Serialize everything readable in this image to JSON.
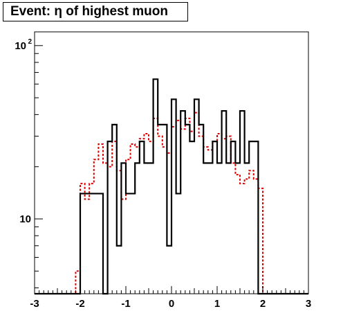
{
  "chart_data": {
    "type": "histogram",
    "title": "Event: η of highest muon",
    "xlabel": "",
    "ylabel": "",
    "xlim": [
      -3,
      3
    ],
    "ylim": [
      3.7,
      120
    ],
    "yscale": "log",
    "bin_width": 0.1,
    "x_ticks": [
      {
        "value": -3,
        "label": "-3"
      },
      {
        "value": -2,
        "label": "-2"
      },
      {
        "value": -1,
        "label": "-1"
      },
      {
        "value": 0,
        "label": "0"
      },
      {
        "value": 1,
        "label": "1"
      },
      {
        "value": 2,
        "label": "2"
      },
      {
        "value": 3,
        "label": "3"
      }
    ],
    "y_ticks": [
      {
        "value": 10,
        "label": "10"
      },
      {
        "value": 100,
        "label": "10",
        "exponent": "2"
      }
    ],
    "series": [
      {
        "style": "solid",
        "color": "#000000",
        "bins": [
          [
            -3.0,
            -2.0,
            0
          ],
          [
            -2.0,
            -1.5,
            14
          ],
          [
            -1.5,
            -1.4,
            0
          ],
          [
            -1.4,
            -1.3,
            28
          ],
          [
            -1.3,
            -1.2,
            35
          ],
          [
            -1.2,
            -1.1,
            7
          ],
          [
            -1.1,
            -1.0,
            21
          ],
          [
            -1.0,
            -0.8,
            14
          ],
          [
            -0.8,
            -0.7,
            21
          ],
          [
            -0.7,
            -0.6,
            28
          ],
          [
            -0.6,
            -0.4,
            21
          ],
          [
            -0.4,
            -0.3,
            64
          ],
          [
            -0.3,
            -0.1,
            35
          ],
          [
            -0.1,
            0.0,
            7
          ],
          [
            0.0,
            0.1,
            49
          ],
          [
            0.1,
            0.2,
            14
          ],
          [
            0.2,
            0.3,
            42
          ],
          [
            0.3,
            0.4,
            35
          ],
          [
            0.4,
            0.5,
            28
          ],
          [
            0.5,
            0.6,
            49
          ],
          [
            0.6,
            0.7,
            35
          ],
          [
            0.7,
            0.9,
            21
          ],
          [
            0.9,
            1.0,
            28
          ],
          [
            1.0,
            1.1,
            21
          ],
          [
            1.1,
            1.2,
            42
          ],
          [
            1.2,
            1.3,
            21
          ],
          [
            1.3,
            1.4,
            28
          ],
          [
            1.4,
            1.5,
            21
          ],
          [
            1.5,
            1.6,
            42
          ],
          [
            1.6,
            1.7,
            21
          ],
          [
            1.7,
            1.9,
            28
          ],
          [
            1.9,
            3.0,
            0
          ]
        ]
      },
      {
        "style": "dashed",
        "color": "#dd0000",
        "bins": [
          [
            -3.0,
            -2.1,
            3.7
          ],
          [
            -2.1,
            -2.0,
            5
          ],
          [
            -2.0,
            -1.9,
            16
          ],
          [
            -1.9,
            -1.8,
            13
          ],
          [
            -1.8,
            -1.7,
            16
          ],
          [
            -1.7,
            -1.6,
            22
          ],
          [
            -1.6,
            -1.5,
            27
          ],
          [
            -1.5,
            -1.4,
            21
          ],
          [
            -1.4,
            -1.3,
            20
          ],
          [
            -1.3,
            -1.2,
            28
          ],
          [
            -1.2,
            -1.1,
            19
          ],
          [
            -1.1,
            -1.0,
            13
          ],
          [
            -1.0,
            -0.9,
            22
          ],
          [
            -0.9,
            -0.8,
            27
          ],
          [
            -0.8,
            -0.7,
            26
          ],
          [
            -0.7,
            -0.6,
            29
          ],
          [
            -0.6,
            -0.5,
            31
          ],
          [
            -0.5,
            -0.4,
            28
          ],
          [
            -0.4,
            -0.3,
            38
          ],
          [
            -0.3,
            -0.2,
            30
          ],
          [
            -0.2,
            -0.1,
            26
          ],
          [
            -0.1,
            0.0,
            24
          ],
          [
            0.0,
            0.1,
            34
          ],
          [
            0.1,
            0.2,
            37
          ],
          [
            0.2,
            0.3,
            33
          ],
          [
            0.3,
            0.4,
            38
          ],
          [
            0.4,
            0.5,
            32
          ],
          [
            0.5,
            0.6,
            41
          ],
          [
            0.6,
            0.7,
            30
          ],
          [
            0.7,
            0.8,
            26
          ],
          [
            0.8,
            0.9,
            25
          ],
          [
            0.9,
            1.0,
            28
          ],
          [
            1.0,
            1.1,
            31
          ],
          [
            1.1,
            1.2,
            29
          ],
          [
            1.2,
            1.3,
            30
          ],
          [
            1.3,
            1.4,
            21
          ],
          [
            1.4,
            1.5,
            18
          ],
          [
            1.5,
            1.6,
            16
          ],
          [
            1.6,
            1.7,
            17
          ],
          [
            1.7,
            1.8,
            19
          ],
          [
            1.8,
            1.9,
            17
          ],
          [
            1.9,
            2.0,
            15
          ],
          [
            2.0,
            3.0,
            3.7
          ]
        ]
      }
    ]
  }
}
